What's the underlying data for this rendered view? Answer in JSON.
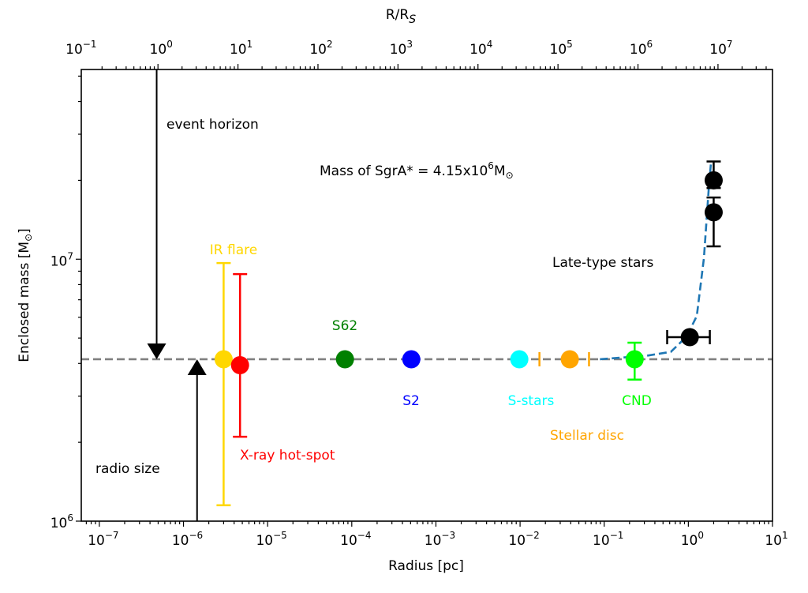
{
  "chart_data": {
    "type": "scatter",
    "xlabel": "Radius [pc]",
    "ylabel_main": "Enclosed mass [M",
    "ylabel_sub": "⊙",
    "ylabel_end": "]",
    "top_xlabel_main": "R/R",
    "top_xlabel_sub": "S",
    "x_scale": "log",
    "y_scale": "log",
    "xlim": [
      6.1e-08,
      10
    ],
    "ylim": [
      1000000.0,
      53000000.0
    ],
    "top_xlim": [
      0.11,
      48000000
    ],
    "x_ticks": [
      -7,
      -6,
      -5,
      -4,
      -3,
      -2,
      -1,
      0,
      1
    ],
    "top_x_ticks": [
      -1,
      0,
      1,
      2,
      3,
      4,
      5,
      6,
      7
    ],
    "y_ticks": [
      6,
      7
    ],
    "tick_base": "10",
    "reference_line": {
      "name": "Mass of SgrA*",
      "value": 4150000,
      "color": "#808080",
      "style": "dashed"
    },
    "series": [
      {
        "name": "IR flare",
        "color": "#FFD700",
        "x": 3e-06,
        "y": 4150000,
        "yerr": [
          1150000,
          9670000
        ]
      },
      {
        "name": "X-ray hot-spot",
        "color": "#FF0000",
        "x": 4.7e-06,
        "y": 3940000,
        "yerr": [
          2100000,
          8770000
        ]
      },
      {
        "name": "S62",
        "color": "#008000",
        "x": 8.3e-05,
        "y": 4150000
      },
      {
        "name": "S2",
        "color": "#0000FF",
        "x": 0.00051,
        "y": 4150000
      },
      {
        "name": "S-stars",
        "color": "#00FFFF",
        "x": 0.0098,
        "y": 4150000
      },
      {
        "name": "Stellar disc",
        "color": "#FFA500",
        "x": 0.039,
        "y": 4150000,
        "xerr": [
          0.017,
          0.066
        ]
      },
      {
        "name": "CND",
        "color": "#00FF00",
        "x": 0.23,
        "y": 4150000,
        "yerr": [
          3470000,
          4800000
        ]
      },
      {
        "name": "Late-type stars 1",
        "color": "#000000",
        "x": 1.04,
        "y": 5040000,
        "xerr": [
          0.56,
          1.8
        ]
      },
      {
        "name": "Late-type stars 2",
        "color": "#000000",
        "x": 2.0,
        "y": 15100000,
        "yerr": [
          11200000,
          17200000
        ]
      },
      {
        "name": "Late-type stars 3",
        "color": "#000000",
        "x": 2.0,
        "y": 20000000,
        "yerr": [
          18700000,
          23600000
        ]
      }
    ],
    "model_curve": {
      "color": "#1f77b4",
      "style": "dashed",
      "x": [
        0.089,
        0.32,
        0.62,
        0.955,
        1.26,
        1.53,
        1.75,
        1.85
      ],
      "y": [
        4150000,
        4280000,
        4430000,
        5070000,
        6070000,
        10070000,
        18700000,
        23000000
      ]
    },
    "arrows": [
      {
        "name": "event horizon",
        "x": 4.8e-07,
        "direction": "down",
        "to_y": 4150000
      },
      {
        "name": "radio size",
        "x": 1.45e-06,
        "direction": "up",
        "to_y": 4150000
      }
    ],
    "annotations": {
      "event_horizon": "event horizon",
      "radio_size": "radio size",
      "mass_prefix": "Mass of SgrA* = 4.15x10",
      "mass_exp": "6",
      "mass_unit": "M",
      "mass_sun": "⊙",
      "ir_flare": "IR flare",
      "xray": "X-ray hot-spot",
      "s62": "S62",
      "s2": "S2",
      "sstars": "S-stars",
      "stellar_disc": "Stellar disc",
      "cnd": "CND",
      "late_type": "Late-type stars"
    }
  }
}
